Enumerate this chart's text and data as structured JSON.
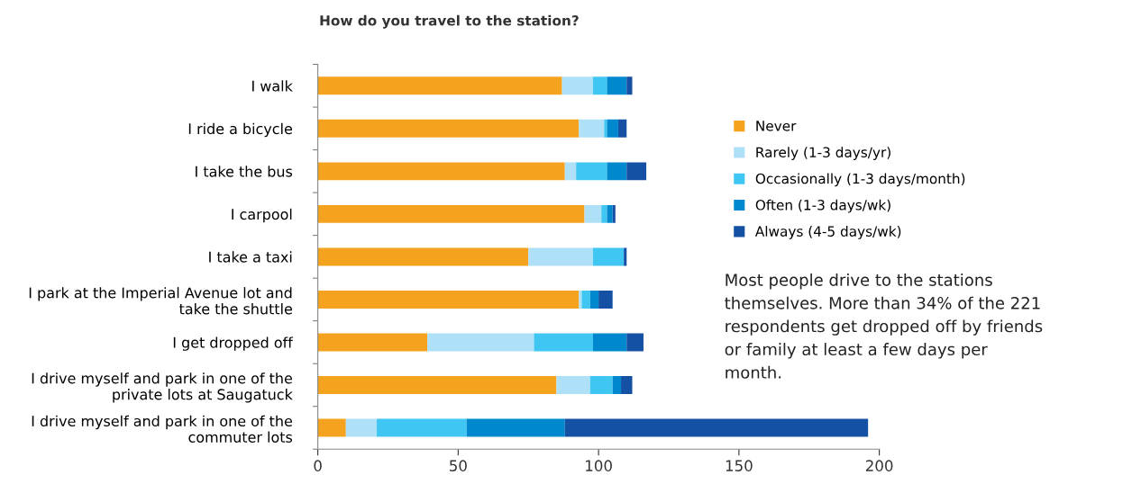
{
  "chart_data": {
    "type": "bar",
    "orientation": "horizontal",
    "stacked": true,
    "title": "How do you travel to the station?",
    "categories": [
      "I walk",
      "I ride a bicycle",
      "I take the bus",
      "I carpool",
      "I take a taxi",
      "I park at the Imperial Avenue lot and take the shuttle",
      "I get dropped off",
      "I drive myself and park in one of the private lots at Saugatuck",
      "I drive myself and park in one of the commuter lots"
    ],
    "series": [
      {
        "name": "Never",
        "color": "#f5a31e",
        "values": [
          87,
          93,
          88,
          95,
          75,
          93,
          39,
          85,
          10
        ]
      },
      {
        "name": "Rarely (1-3 days/yr)",
        "color": "#aee0f8",
        "values": [
          11,
          9,
          4,
          6,
          23,
          1,
          38,
          12,
          11
        ]
      },
      {
        "name": "Occasionally (1-3 days/month)",
        "color": "#40c6f2",
        "values": [
          5,
          1,
          11,
          2,
          11,
          3,
          21,
          8,
          32
        ]
      },
      {
        "name": "Often (1-3 days/wk)",
        "color": "#0088cf",
        "values": [
          7,
          4,
          7,
          2,
          0,
          3,
          12,
          3,
          35
        ]
      },
      {
        "name": "Always (4-5 days/wk)",
        "color": "#1450a3",
        "values": [
          2,
          3,
          7,
          1,
          1,
          5,
          6,
          4,
          108
        ]
      }
    ],
    "xlim": [
      0,
      200
    ],
    "xticks": [
      0,
      50,
      100,
      150,
      200
    ],
    "grid": false,
    "legend": "right",
    "annotations": [
      "Most people drive to the stations themselves. More than 34% of the 221 respondents get dropped off by friends or family at least a few days per month."
    ]
  }
}
